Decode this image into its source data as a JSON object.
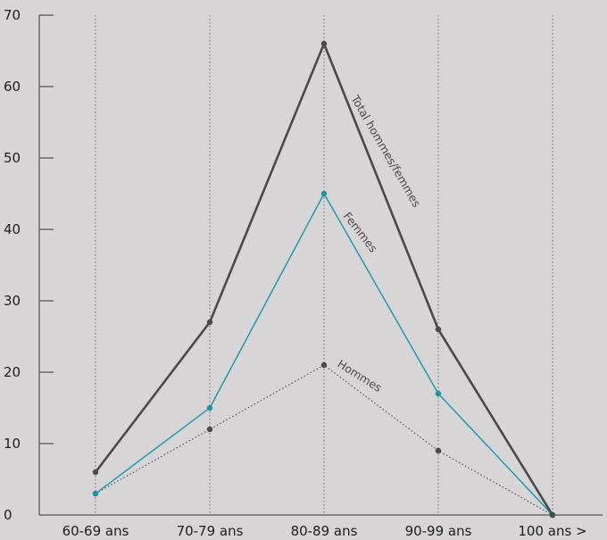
{
  "chart_data": {
    "type": "line",
    "title": "",
    "xlabel": "",
    "ylabel": "",
    "categories": [
      "60-69 ans",
      "70-79 ans",
      "80-89 ans",
      "90-99 ans",
      "100 ans >"
    ],
    "ylim": [
      0,
      70
    ],
    "yticks": [
      0,
      10,
      20,
      30,
      40,
      50,
      60,
      70
    ],
    "grid": "vertical dotted lines at each category",
    "legend": "none (series names written along the lines)",
    "series": [
      {
        "name": "Total hommes/femmes",
        "values": [
          6,
          27,
          66,
          26,
          0
        ],
        "color": "#4a4a4a",
        "style": "solid-thick"
      },
      {
        "name": "Femmes",
        "values": [
          3,
          15,
          45,
          17,
          0
        ],
        "color": "#1a97a6",
        "style": "solid-thin"
      },
      {
        "name": "Hommes",
        "values": [
          3,
          12,
          21,
          9,
          0
        ],
        "color": "#4a4a4a",
        "style": "dotted"
      }
    ]
  }
}
